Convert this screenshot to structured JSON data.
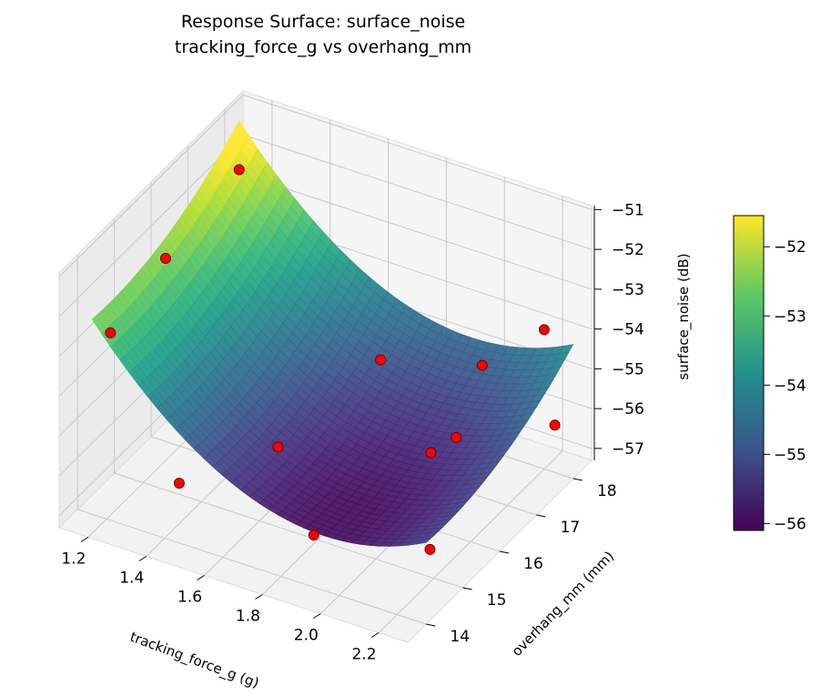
{
  "chart_data": {
    "type": "surface",
    "title": "Response Surface: surface_noise",
    "subtitle": "tracking_force_g vs overhang_mm",
    "xlabel": "tracking_force_g (g)",
    "ylabel": "overhang_mm (mm)",
    "zlabel": "surface_noise (dB)",
    "x_ticks": [
      "1.2",
      "1.4",
      "1.6",
      "1.8",
      "2.0",
      "2.2"
    ],
    "y_ticks": [
      "14",
      "15",
      "16",
      "17",
      "18"
    ],
    "z_ticks": [
      "−57",
      "−56",
      "−55",
      "−54",
      "−53",
      "−52",
      "−51"
    ],
    "xlim": [
      1.1,
      2.3
    ],
    "ylim": [
      13.5,
      18.5
    ],
    "zlim": [
      -57.3,
      -50.9
    ],
    "colormap": "viridis",
    "colorbar": {
      "range": [
        -56.1,
        -51.55
      ],
      "ticks": [
        "−52",
        "−53",
        "−54",
        "−55",
        "−56"
      ]
    },
    "surface_model": "z = -55.95 + 5.5*(x - 1.95)^2 + 0.11*(y - 14.5)^2",
    "grid": true,
    "points": [
      {
        "x": 1.15,
        "y": 18.0,
        "z": -52.3
      },
      {
        "x": 1.15,
        "y": 16.0,
        "z": -52.7
      },
      {
        "x": 1.15,
        "y": 14.5,
        "z": -53.2
      },
      {
        "x": 1.45,
        "y": 14.0,
        "z": -55.8
      },
      {
        "x": 1.6,
        "y": 15.5,
        "z": -55.9
      },
      {
        "x": 1.7,
        "y": 17.5,
        "z": -55.3
      },
      {
        "x": 1.85,
        "y": 14.5,
        "z": -56.6
      },
      {
        "x": 2.0,
        "y": 16.5,
        "z": -56.0
      },
      {
        "x": 2.05,
        "y": 17.5,
        "z": -54.6
      },
      {
        "x": 2.15,
        "y": 16.0,
        "z": -54.8
      },
      {
        "x": 2.2,
        "y": 18.0,
        "z": -53.8
      },
      {
        "x": 2.3,
        "y": 17.5,
        "z": -55.5
      },
      {
        "x": 2.25,
        "y": 14.5,
        "z": -56.0
      }
    ],
    "point_color": "#ff0000"
  }
}
